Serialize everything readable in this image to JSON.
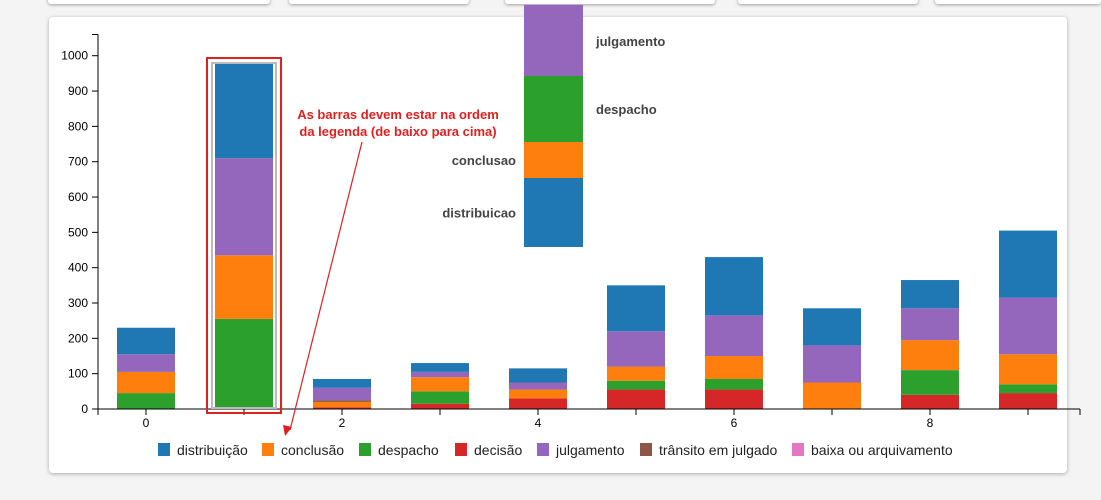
{
  "chart_data": {
    "type": "bar",
    "stacked": true,
    "categories": [
      0,
      1,
      2,
      3,
      4,
      5,
      6,
      7,
      8,
      9
    ],
    "x_tick_labels": [
      "0",
      "2",
      "4",
      "6",
      "8"
    ],
    "ylim": [
      0,
      1060
    ],
    "yticks": [
      0,
      100,
      200,
      300,
      400,
      500,
      600,
      700,
      800,
      900,
      1000
    ],
    "series": [
      {
        "name": "decisão",
        "color": "#d62728",
        "values": [
          0,
          0,
          5,
          15,
          30,
          55,
          55,
          0,
          40,
          45
        ]
      },
      {
        "name": "despacho",
        "color": "#2ca02c",
        "values": [
          45,
          255,
          0,
          35,
          0,
          25,
          30,
          0,
          70,
          25
        ]
      },
      {
        "name": "conclusão",
        "color": "#ff7f0e",
        "values": [
          60,
          180,
          15,
          40,
          25,
          40,
          65,
          75,
          85,
          85
        ]
      },
      {
        "name": "trânsito em julgado",
        "color": "#8c564b",
        "values": [
          0,
          0,
          5,
          0,
          0,
          0,
          0,
          0,
          0,
          0
        ]
      },
      {
        "name": "baixa ou arquivamento",
        "color": "#e377c2",
        "values": [
          0,
          0,
          0,
          0,
          0,
          0,
          0,
          0,
          0,
          0
        ]
      },
      {
        "name": "julgamento",
        "color": "#9467bd",
        "values": [
          50,
          275,
          35,
          15,
          20,
          100,
          115,
          105,
          90,
          160
        ]
      },
      {
        "name": "distribuição",
        "color": "#1f77b4",
        "values": [
          75,
          270,
          25,
          25,
          40,
          130,
          165,
          105,
          80,
          190
        ]
      }
    ],
    "grid": false
  },
  "inset": {
    "segments": [
      {
        "label": "distribuicao",
        "color": "#1f77b4",
        "from": 250,
        "to": 480
      },
      {
        "label": "conclusao",
        "color": "#ff7f0e",
        "from": 480,
        "to": 600
      },
      {
        "label": "despacho",
        "color": "#2ca02c",
        "from": 600,
        "to": 820
      },
      {
        "label": "julgamento",
        "color": "#9467bd",
        "from": 820,
        "to": 1057
      }
    ]
  },
  "annotation": {
    "line1": "As barras devem estar na ordem",
    "line2": "da legenda (de baixo para cima)",
    "color": "#e02020"
  },
  "legend": [
    {
      "label": "distribuição",
      "color": "#1f77b4"
    },
    {
      "label": "conclusão",
      "color": "#ff7f0e"
    },
    {
      "label": "despacho",
      "color": "#2ca02c"
    },
    {
      "label": "decisão",
      "color": "#d62728"
    },
    {
      "label": "julgamento",
      "color": "#9467bd"
    },
    {
      "label": "trânsito em julgado",
      "color": "#8c564b"
    },
    {
      "label": "baixa ou arquivamento",
      "color": "#e377c2"
    }
  ]
}
